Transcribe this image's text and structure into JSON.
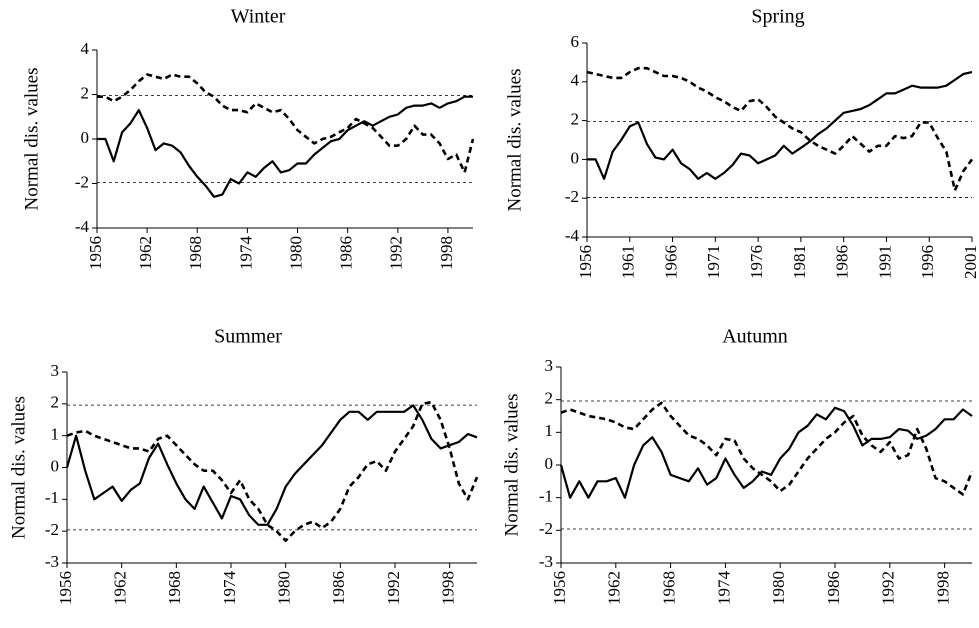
{
  "chart_data": [
    {
      "type": "line",
      "title": "Winter",
      "y_label": "Normal dis. values",
      "x": [
        1956,
        1957,
        1958,
        1959,
        1960,
        1961,
        1962,
        1963,
        1964,
        1965,
        1966,
        1967,
        1968,
        1969,
        1970,
        1971,
        1972,
        1973,
        1974,
        1975,
        1976,
        1977,
        1978,
        1979,
        1980,
        1981,
        1982,
        1983,
        1984,
        1985,
        1986,
        1987,
        1988,
        1989,
        1990,
        1991,
        1992,
        1993,
        1994,
        1995,
        1996,
        1997,
        1998,
        1999,
        2000,
        2001
      ],
      "xlim": [
        1956,
        2001
      ],
      "xticks": [
        1956,
        1962,
        1968,
        1974,
        1980,
        1986,
        1992,
        1998
      ],
      "ylim": [
        -4,
        4
      ],
      "yticks": [
        -4,
        -2,
        0,
        2,
        4
      ],
      "reference_lines": [
        1.96,
        -1.96
      ],
      "series": [
        {
          "color": "#000000",
          "dash": "solid",
          "values": [
            0,
            0,
            -1.0,
            0.3,
            0.7,
            1.3,
            0.5,
            -0.5,
            -0.2,
            -0.3,
            -0.6,
            -1.2,
            -1.7,
            -2.1,
            -2.6,
            -2.5,
            -1.8,
            -2.0,
            -1.5,
            -1.7,
            -1.3,
            -1.0,
            -1.5,
            -1.4,
            -1.1,
            -1.1,
            -0.7,
            -0.4,
            -0.1,
            0.0,
            0.4,
            0.6,
            0.8,
            0.6,
            0.8,
            1.0,
            1.1,
            1.4,
            1.5,
            1.5,
            1.6,
            1.4,
            1.6,
            1.7,
            1.9,
            1.9
          ]
        },
        {
          "color": "#000000",
          "dash": "dashed",
          "values": [
            1.9,
            1.9,
            1.7,
            1.9,
            2.2,
            2.6,
            2.9,
            2.8,
            2.7,
            2.9,
            2.8,
            2.8,
            2.5,
            2.1,
            1.9,
            1.5,
            1.3,
            1.3,
            1.2,
            1.6,
            1.4,
            1.2,
            1.3,
            0.9,
            0.4,
            0.1,
            -0.2,
            0.0,
            0.1,
            0.3,
            0.5,
            0.9,
            0.7,
            0.5,
            0.1,
            -0.3,
            -0.3,
            0.0,
            0.6,
            0.2,
            0.2,
            -0.2,
            -0.9,
            -0.7,
            -1.5,
            0.0
          ]
        }
      ]
    },
    {
      "type": "line",
      "title": "Spring",
      "y_label": "Normal dis. values",
      "x": [
        1956,
        1957,
        1958,
        1959,
        1960,
        1961,
        1962,
        1963,
        1964,
        1965,
        1966,
        1967,
        1968,
        1969,
        1970,
        1971,
        1972,
        1973,
        1974,
        1975,
        1976,
        1977,
        1978,
        1979,
        1980,
        1981,
        1982,
        1983,
        1984,
        1985,
        1986,
        1987,
        1988,
        1989,
        1990,
        1991,
        1992,
        1993,
        1994,
        1995,
        1996,
        1997,
        1998,
        1999,
        2000,
        2001
      ],
      "xlim": [
        1956,
        2001
      ],
      "xticks": [
        1956,
        1961,
        1966,
        1971,
        1976,
        1981,
        1986,
        1991,
        1996,
        2001
      ],
      "ylim": [
        -4,
        6
      ],
      "yticks": [
        -4,
        -2,
        0,
        2,
        4,
        6
      ],
      "reference_lines": [
        1.96,
        -1.96
      ],
      "series": [
        {
          "color": "#000000",
          "dash": "solid",
          "values": [
            0,
            0,
            -1.0,
            0.4,
            1.0,
            1.7,
            1.9,
            0.8,
            0.1,
            0.0,
            0.5,
            -0.2,
            -0.5,
            -1.0,
            -0.7,
            -1.0,
            -0.7,
            -0.3,
            0.3,
            0.2,
            -0.2,
            0.0,
            0.2,
            0.7,
            0.3,
            0.6,
            0.9,
            1.3,
            1.6,
            2.0,
            2.4,
            2.5,
            2.6,
            2.8,
            3.1,
            3.4,
            3.4,
            3.6,
            3.8,
            3.7,
            3.7,
            3.7,
            3.8,
            4.1,
            4.4,
            4.5
          ]
        },
        {
          "color": "#000000",
          "dash": "dashed",
          "values": [
            4.5,
            4.4,
            4.3,
            4.2,
            4.2,
            4.5,
            4.7,
            4.7,
            4.5,
            4.3,
            4.3,
            4.2,
            4.0,
            3.7,
            3.5,
            3.2,
            3.0,
            2.7,
            2.5,
            3.0,
            3.1,
            2.7,
            2.2,
            1.9,
            1.6,
            1.4,
            1.0,
            0.7,
            0.5,
            0.3,
            0.7,
            1.2,
            0.8,
            0.4,
            0.7,
            0.7,
            1.2,
            1.1,
            1.2,
            1.9,
            1.9,
            1.1,
            0.4,
            -1.6,
            -0.6,
            0.0
          ]
        }
      ]
    },
    {
      "type": "line",
      "title": "Summer",
      "y_label": "Normal dis. values",
      "x": [
        1956,
        1957,
        1958,
        1959,
        1960,
        1961,
        1962,
        1963,
        1964,
        1965,
        1966,
        1967,
        1968,
        1969,
        1970,
        1971,
        1972,
        1973,
        1974,
        1975,
        1976,
        1977,
        1978,
        1979,
        1980,
        1981,
        1982,
        1983,
        1984,
        1985,
        1986,
        1987,
        1988,
        1989,
        1990,
        1991,
        1992,
        1993,
        1994,
        1995,
        1996,
        1997,
        1998,
        1999,
        2000,
        2001
      ],
      "xlim": [
        1956,
        2001
      ],
      "xticks": [
        1956,
        1962,
        1968,
        1974,
        1980,
        1986,
        1992,
        1998
      ],
      "ylim": [
        -3,
        3
      ],
      "yticks": [
        -3,
        -2,
        -1,
        0,
        1,
        2,
        3
      ],
      "reference_lines": [
        1.96,
        -1.96
      ],
      "series": [
        {
          "color": "#000000",
          "dash": "solid",
          "values": [
            0,
            1.0,
            -0.1,
            -1.0,
            -0.8,
            -0.6,
            -1.05,
            -0.7,
            -0.5,
            0.3,
            0.75,
            0.1,
            -0.5,
            -1.0,
            -1.3,
            -0.6,
            -1.1,
            -1.6,
            -0.9,
            -1.0,
            -1.5,
            -1.8,
            -1.8,
            -1.3,
            -0.6,
            -0.2,
            0.1,
            0.4,
            0.7,
            1.1,
            1.5,
            1.75,
            1.75,
            1.5,
            1.75,
            1.75,
            1.75,
            1.75,
            1.95,
            1.5,
            0.9,
            0.6,
            0.7,
            0.8,
            1.05,
            0.95
          ]
        },
        {
          "color": "#000000",
          "dash": "dashed",
          "values": [
            1.0,
            1.1,
            1.15,
            1.0,
            0.9,
            0.8,
            0.7,
            0.6,
            0.6,
            0.5,
            0.9,
            1.0,
            0.7,
            0.4,
            0.1,
            -0.1,
            -0.1,
            -0.4,
            -0.8,
            -0.4,
            -1.0,
            -1.3,
            -1.8,
            -2.0,
            -2.3,
            -2.0,
            -1.8,
            -1.7,
            -1.9,
            -1.7,
            -1.3,
            -0.6,
            -0.3,
            0.1,
            0.2,
            -0.1,
            0.5,
            0.9,
            1.3,
            2.0,
            2.05,
            1.5,
            0.6,
            -0.5,
            -1.0,
            -0.3
          ]
        }
      ]
    },
    {
      "type": "line",
      "title": "Autumn",
      "y_label": "Normal dis. values",
      "x": [
        1956,
        1957,
        1958,
        1959,
        1960,
        1961,
        1962,
        1963,
        1964,
        1965,
        1966,
        1967,
        1968,
        1969,
        1970,
        1971,
        1972,
        1973,
        1974,
        1975,
        1976,
        1977,
        1978,
        1979,
        1980,
        1981,
        1982,
        1983,
        1984,
        1985,
        1986,
        1987,
        1988,
        1989,
        1990,
        1991,
        1992,
        1993,
        1994,
        1995,
        1996,
        1997,
        1998,
        1999,
        2000,
        2001
      ],
      "xlim": [
        1956,
        2001
      ],
      "xticks": [
        1956,
        1962,
        1968,
        1974,
        1980,
        1986,
        1992,
        1998
      ],
      "ylim": [
        -3,
        3
      ],
      "yticks": [
        -3,
        -2,
        -1,
        0,
        1,
        2,
        3
      ],
      "reference_lines": [
        1.96,
        -1.96
      ],
      "series": [
        {
          "color": "#000000",
          "dash": "solid",
          "values": [
            0,
            -1.0,
            -0.5,
            -1.0,
            -0.5,
            -0.5,
            -0.4,
            -1.0,
            0.0,
            0.6,
            0.85,
            0.4,
            -0.3,
            -0.4,
            -0.5,
            -0.1,
            -0.6,
            -0.4,
            0.2,
            -0.3,
            -0.7,
            -0.5,
            -0.2,
            -0.3,
            0.2,
            0.5,
            1.0,
            1.2,
            1.55,
            1.4,
            1.75,
            1.65,
            1.2,
            0.6,
            0.8,
            0.8,
            0.85,
            1.1,
            1.05,
            0.8,
            0.9,
            1.1,
            1.4,
            1.4,
            1.7,
            1.5
          ]
        },
        {
          "color": "#000000",
          "dash": "dashed",
          "values": [
            1.6,
            1.7,
            1.6,
            1.5,
            1.45,
            1.4,
            1.3,
            1.15,
            1.1,
            1.4,
            1.7,
            1.9,
            1.5,
            1.2,
            0.9,
            0.8,
            0.6,
            0.3,
            0.8,
            0.75,
            0.2,
            -0.1,
            -0.3,
            -0.5,
            -0.8,
            -0.6,
            -0.2,
            0.2,
            0.5,
            0.8,
            1.0,
            1.3,
            1.5,
            0.9,
            0.6,
            0.4,
            0.7,
            0.2,
            0.3,
            1.1,
            0.5,
            -0.4,
            -0.5,
            -0.7,
            -0.9,
            -0.2
          ]
        }
      ]
    }
  ]
}
